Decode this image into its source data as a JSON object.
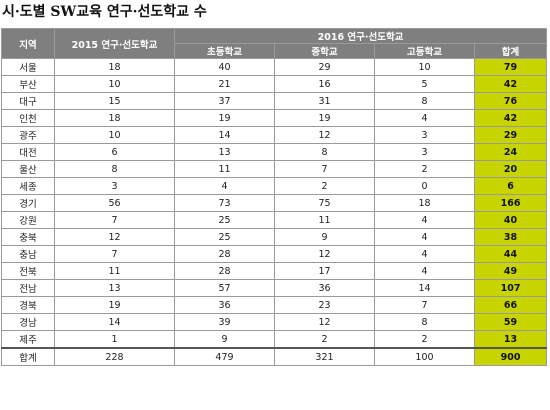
{
  "title": "시·도별 SW교육 연구·선도학교 수",
  "header": {
    "region": "지역",
    "col2015": "2015 연구·선도학교",
    "group2016": "2016 연구·선도학교",
    "elementary": "초등학교",
    "middle": "중학교",
    "high": "고등학교",
    "total": "합계"
  },
  "rows": [
    {
      "region": "서울",
      "y2015": "18",
      "elementary": "40",
      "middle": "29",
      "high": "10",
      "total": "79"
    },
    {
      "region": "부산",
      "y2015": "10",
      "elementary": "21",
      "middle": "16",
      "high": "5",
      "total": "42"
    },
    {
      "region": "대구",
      "y2015": "15",
      "elementary": "37",
      "middle": "31",
      "high": "8",
      "total": "76"
    },
    {
      "region": "인천",
      "y2015": "18",
      "elementary": "19",
      "middle": "19",
      "high": "4",
      "total": "42"
    },
    {
      "region": "광주",
      "y2015": "10",
      "elementary": "14",
      "middle": "12",
      "high": "3",
      "total": "29"
    },
    {
      "region": "대전",
      "y2015": "6",
      "elementary": "13",
      "middle": "8",
      "high": "3",
      "total": "24"
    },
    {
      "region": "울산",
      "y2015": "8",
      "elementary": "11",
      "middle": "7",
      "high": "2",
      "total": "20"
    },
    {
      "region": "세종",
      "y2015": "3",
      "elementary": "4",
      "middle": "2",
      "high": "0",
      "total": "6"
    },
    {
      "region": "경기",
      "y2015": "56",
      "elementary": "73",
      "middle": "75",
      "high": "18",
      "total": "166"
    },
    {
      "region": "강원",
      "y2015": "7",
      "elementary": "25",
      "middle": "11",
      "high": "4",
      "total": "40"
    },
    {
      "region": "충북",
      "y2015": "12",
      "elementary": "25",
      "middle": "9",
      "high": "4",
      "total": "38"
    },
    {
      "region": "충남",
      "y2015": "7",
      "elementary": "28",
      "middle": "12",
      "high": "4",
      "total": "44"
    },
    {
      "region": "전북",
      "y2015": "11",
      "elementary": "28",
      "middle": "17",
      "high": "4",
      "total": "49"
    },
    {
      "region": "전남",
      "y2015": "13",
      "elementary": "57",
      "middle": "36",
      "high": "14",
      "total": "107"
    },
    {
      "region": "경북",
      "y2015": "19",
      "elementary": "36",
      "middle": "23",
      "high": "7",
      "total": "66"
    },
    {
      "region": "경남",
      "y2015": "14",
      "elementary": "39",
      "middle": "12",
      "high": "8",
      "total": "59"
    },
    {
      "region": "제주",
      "y2015": "1",
      "elementary": "9",
      "middle": "2",
      "high": "2",
      "total": "13"
    }
  ],
  "sum": {
    "region": "합계",
    "y2015": "228",
    "elementary": "479",
    "middle": "321",
    "high": "100",
    "total": "900"
  },
  "colors": {
    "header_bg": "#7f7f7f",
    "total_bg": "#c8d400"
  }
}
